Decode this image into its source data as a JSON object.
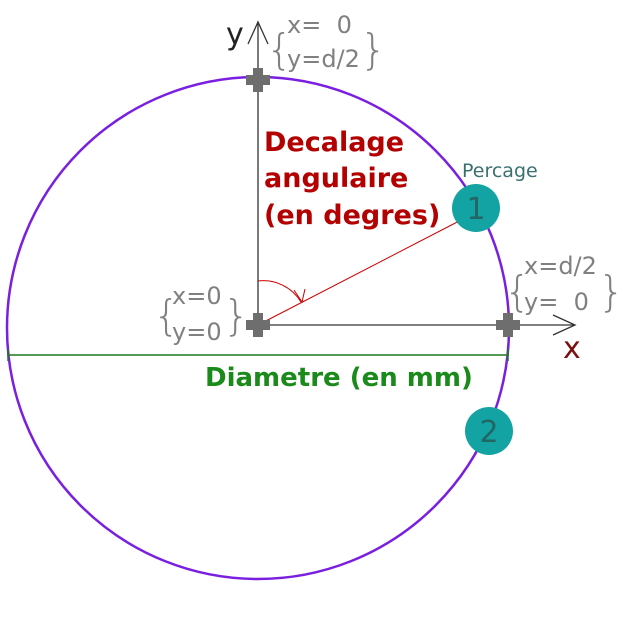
{
  "axes": {
    "x_label": "x",
    "y_label": "y"
  },
  "coords": {
    "top": {
      "x": "x=  0",
      "y": "y=d/2"
    },
    "origin": {
      "x": "x=0",
      "y": "y=0"
    },
    "right": {
      "x": "x=d/2",
      "y": "y=  0"
    }
  },
  "labels": {
    "angular_offset": [
      "Decalage",
      "angulaire",
      "(en degres)"
    ],
    "diameter": "Diametre (en mm)",
    "drilling": "Percage"
  },
  "holes": [
    {
      "number": "1"
    },
    {
      "number": "2"
    }
  ],
  "colors": {
    "circle": "#7a1fe0",
    "hole_fill": "#13a3a3",
    "axis": "#333333",
    "marker": "#6e6e6e",
    "angle_line": "#cc0000",
    "diameter_line": "#1a7a1a",
    "title_red": "#b30000",
    "title_green": "#1a8a1a",
    "percage_text": "#3a7070"
  }
}
